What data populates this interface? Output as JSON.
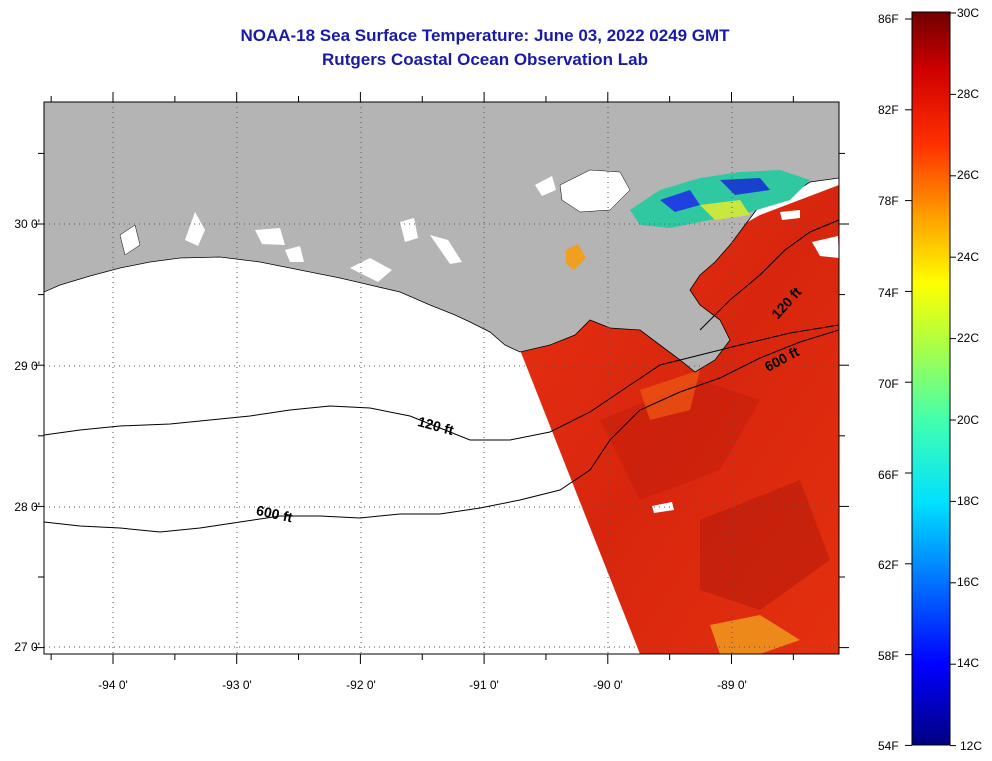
{
  "title": {
    "line1": "NOAA-18 Sea Surface Temperature:  June 03, 2022 0249 GMT",
    "line2": "Rutgers Coastal Ocean Observation Lab"
  },
  "map": {
    "longitude_labels": [
      "-94 0'",
      "-93 0'",
      "-92 0'",
      "-91 0'",
      "-90 0'",
      "-89 0'"
    ],
    "latitude_labels": [
      "30 0'",
      "29 0'",
      "28 0'",
      "27 0'"
    ],
    "contour_labels": {
      "c120_west": "120 ft",
      "c600_west": "600 ft",
      "c120_east": "120 ft",
      "c600_east": "600 ft"
    },
    "colors": {
      "land": "#b4b4b4",
      "sea_warm": "#e02a10",
      "sea_dark": "#b81a0c"
    }
  },
  "colorbar": {
    "fahrenheit_labels": [
      "86F",
      "82F",
      "78F",
      "74F",
      "70F",
      "66F",
      "62F",
      "58F",
      "54F"
    ],
    "celsius_labels": [
      "30C",
      "28C",
      "26C",
      "24C",
      "22C",
      "20C",
      "18C",
      "16C",
      "14C",
      "12C"
    ]
  }
}
